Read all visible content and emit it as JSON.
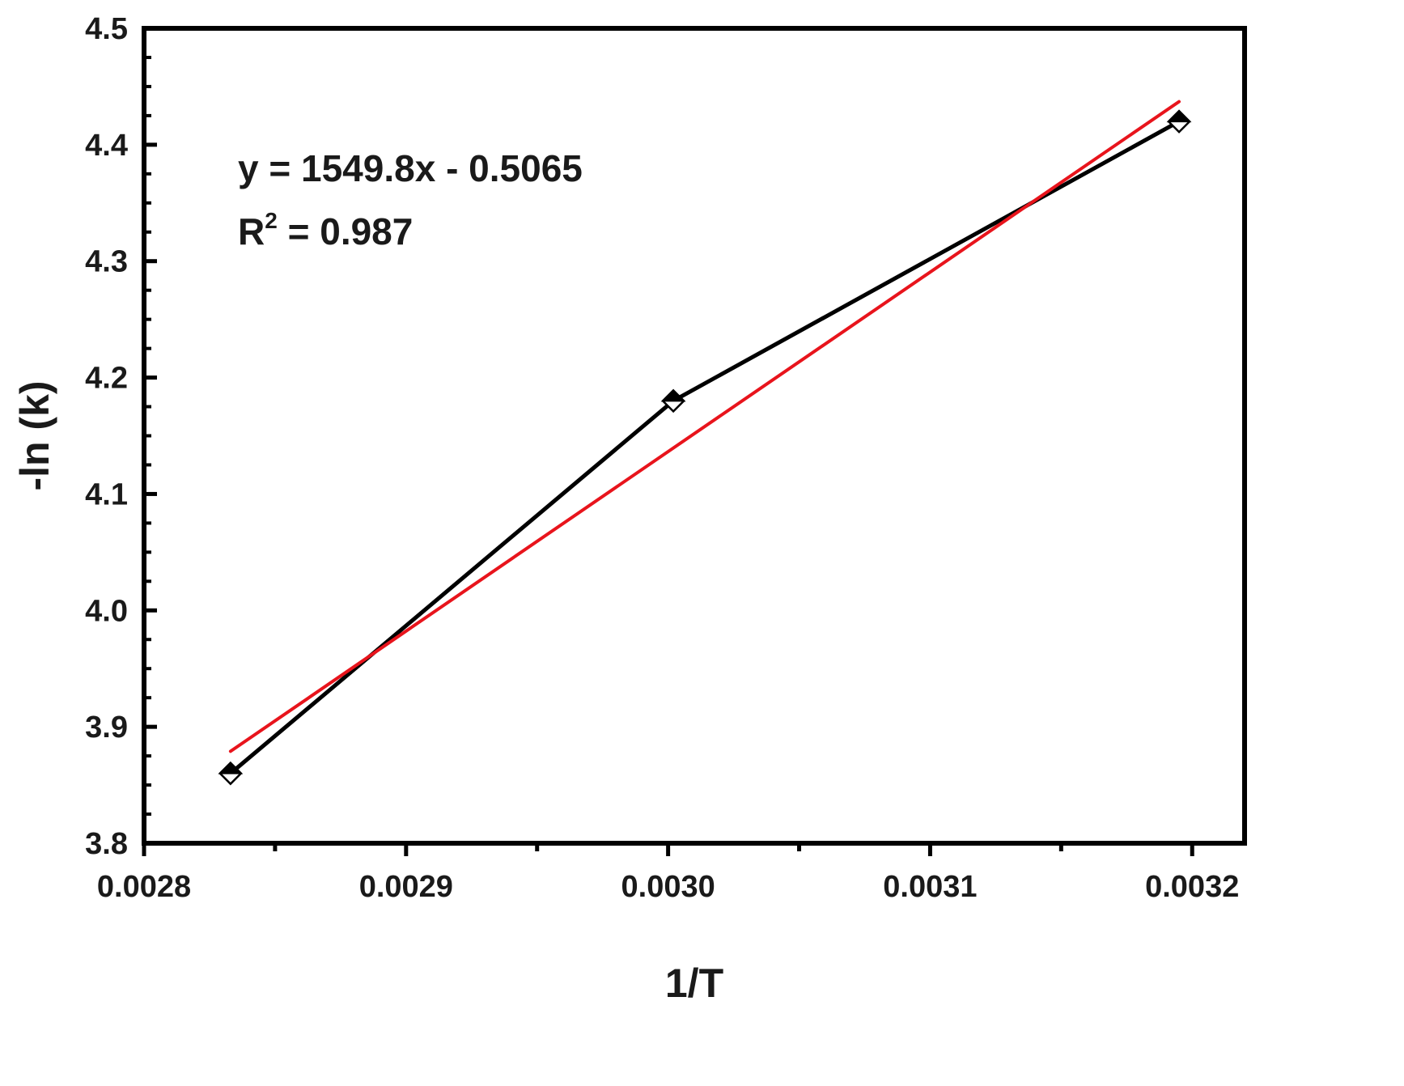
{
  "chart_data": {
    "type": "line",
    "title": "",
    "xlabel": "1/T",
    "ylabel": "-ln (k)",
    "xlim": [
      0.0028,
      0.00322
    ],
    "ylim": [
      3.8,
      4.5
    ],
    "x_ticks": [
      0.0028,
      0.0029,
      0.003,
      0.0031,
      0.0032
    ],
    "x_tick_labels": [
      "0.0028",
      "0.0029",
      "0.0030",
      "0.0031",
      "0.0032"
    ],
    "x_minor_ticks": [
      0.00285,
      0.00295,
      0.00305,
      0.00315
    ],
    "y_ticks": [
      3.8,
      3.9,
      4.0,
      4.1,
      4.2,
      4.3,
      4.4,
      4.5
    ],
    "y_tick_labels": [
      "3.8",
      "3.9",
      "4.0",
      "4.1",
      "4.2",
      "4.3",
      "4.4",
      "4.5"
    ],
    "y_minor_ticks": [
      3.825,
      3.85,
      3.875,
      3.925,
      3.95,
      3.975,
      4.025,
      4.05,
      4.075,
      4.125,
      4.15,
      4.175,
      4.225,
      4.25,
      4.275,
      4.325,
      4.35,
      4.375,
      4.425,
      4.45,
      4.475
    ],
    "grid": false,
    "series": [
      {
        "kind": "data",
        "marker": "half-filled-diamond",
        "color": "#000000",
        "x": [
          0.002833,
          0.003002,
          0.003195
        ],
        "y": [
          3.86,
          4.18,
          4.42
        ]
      },
      {
        "kind": "fit",
        "color": "#e8141c",
        "x": [
          0.002833,
          0.003195
        ],
        "y": [
          3.879,
          4.437
        ]
      }
    ],
    "annotations": {
      "equation": "y = 1549.8x - 0.5065",
      "r2_prefix": "R",
      "r2_superscript": "2",
      "r2_suffix": " = 0.987"
    }
  }
}
